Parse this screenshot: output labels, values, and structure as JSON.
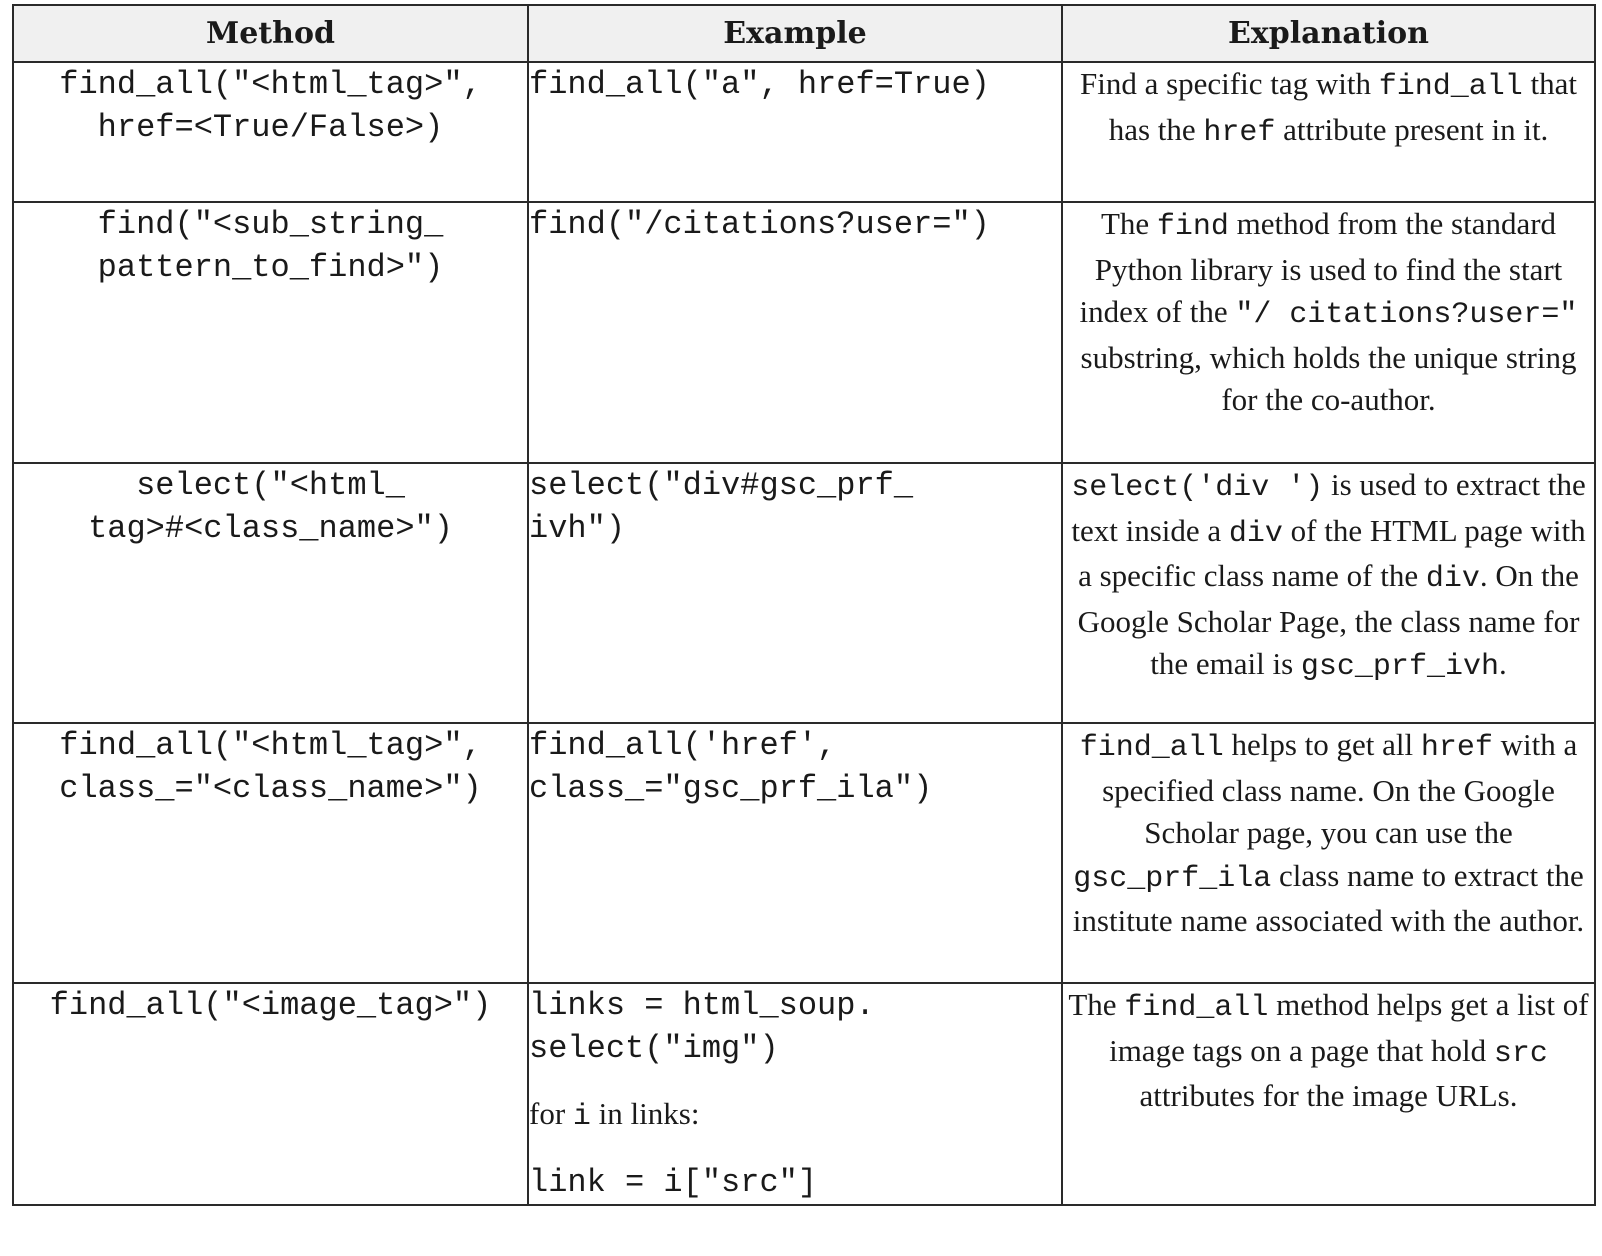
{
  "table": {
    "headers": [
      "Method",
      "Example",
      "Explanation"
    ],
    "rows": [
      {
        "method": [
          "find_all(\"<html_tag>\",",
          "href=<True/False>)"
        ],
        "example": [
          "find_all(\"a\", href=True)"
        ],
        "explanation": [
          {
            "t": "Find a specific tag with "
          },
          {
            "c": "find_all"
          },
          {
            "t": " that has the "
          },
          {
            "c": "href"
          },
          {
            "t": " attribute present in it."
          }
        ]
      },
      {
        "method": [
          "find(\"<sub_string_",
          "pattern_to_find>\")"
        ],
        "example": [
          "find(\"/citations?user=\")"
        ],
        "explanation": [
          {
            "t": "The "
          },
          {
            "c": "find"
          },
          {
            "t": " method from the standard Python library is used to find the start index of the "
          },
          {
            "c": "\"/ citations?user=\""
          },
          {
            "t": " substring, which holds the unique string for the co-author."
          }
        ]
      },
      {
        "method": [
          "select(\"<html_",
          "tag>#<class_name>\")"
        ],
        "example": [
          "select(\"div#gsc_prf_",
          "ivh\")"
        ],
        "explanation": [
          {
            "c": "select('div ')"
          },
          {
            "t": " is used to extract the text inside a "
          },
          {
            "c": "div"
          },
          {
            "t": " of the HTML page with a specific class name of the "
          },
          {
            "c": "div"
          },
          {
            "t": ". On the Google Scholar Page, the class name for the email is "
          },
          {
            "c": "gsc_prf_ivh"
          },
          {
            "t": "."
          }
        ]
      },
      {
        "method": [
          "find_all(\"<html_tag>\",",
          "class_=\"<class_name>\")"
        ],
        "example": [
          "find_all('href',",
          "class_=\"gsc_prf_ila\")"
        ],
        "explanation": [
          {
            "c": "find_all"
          },
          {
            "t": " helps to get all "
          },
          {
            "c": "href"
          },
          {
            "t": " with a specified class name. On the Google Scholar page, you can use the "
          },
          {
            "c": "gsc_prf_ila"
          },
          {
            "t": " class name to extract the institute name associated with the author."
          }
        ]
      },
      {
        "method": [
          "find_all(\"<image_tag>\")"
        ],
        "example": [
          "links = html_soup.",
          "select(\"img\")"
        ],
        "example_loop": [
          {
            "t": "for "
          },
          {
            "c": "i"
          },
          {
            "t": " in links:"
          }
        ],
        "example_last": "link = i[\"src\"]",
        "explanation": [
          {
            "t": "The "
          },
          {
            "c": "find_all"
          },
          {
            "t": " method helps get a list of image tags on a page that hold "
          },
          {
            "c": "src"
          },
          {
            "t": " attributes for the image URLs."
          }
        ]
      }
    ]
  }
}
